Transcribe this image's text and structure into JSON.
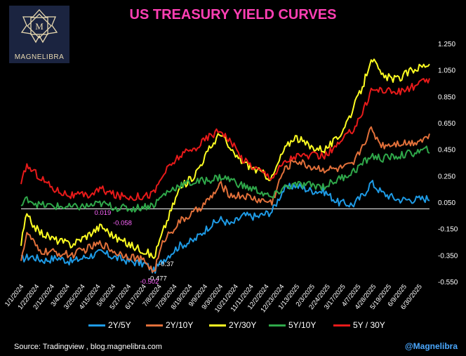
{
  "header": {
    "title": "US TREASURY YIELD CURVES"
  },
  "logo": {
    "text": "MAGNELIBRA",
    "gold": "#e8d9b0",
    "bg": "#1b2440"
  },
  "footer": {
    "source": "Source:  Tradingview , blog.magnelibra.com",
    "handle": "@Magnelibra"
  },
  "colors": {
    "background": "#000000",
    "title": "#ff3fb4",
    "zero_line": "#ffffff",
    "handle": "#4aa8ff",
    "annotation": "#ff66ff"
  },
  "chart_data": {
    "type": "line",
    "title": "US TREASURY YIELD CURVES",
    "ylim": [
      -0.55,
      1.25
    ],
    "yticks": [
      "1.250",
      "1.050",
      "0.850",
      "0.650",
      "0.450",
      "0.250",
      "0.050",
      "-0.150",
      "-0.350",
      "-0.550"
    ],
    "yaxis_side": "right",
    "grid": false,
    "legend": "bottom",
    "x_dates": [
      "2024-01-01",
      "2025-07-14"
    ],
    "xticks": [
      "1/1/2024",
      "1/22/2024",
      "2/12/2024",
      "3/4/2024",
      "3/25/2024",
      "4/15/2024",
      "5/6/2024",
      "5/27/2024",
      "6/17/2024",
      "7/8/2024",
      "7/29/2024",
      "8/19/2024",
      "9/9/2024",
      "9/30/2024",
      "10/21/2024",
      "11/11/2024",
      "12/2/2024",
      "12/23/2024",
      "1/13/2025",
      "2/3/2025",
      "2/24/2025",
      "3/17/2025",
      "4/7/2025",
      "4/28/2025",
      "5/19/2025",
      "6/9/2025",
      "6/30/2025"
    ],
    "series": [
      {
        "name": "2Y/5Y",
        "color": "#1e9be6",
        "points": [
          [
            "2024-01-01",
            -0.38
          ],
          [
            "2024-01-15",
            -0.36
          ],
          [
            "2024-02-01",
            -0.39
          ],
          [
            "2024-02-20",
            -0.37
          ],
          [
            "2024-03-10",
            -0.4
          ],
          [
            "2024-04-01",
            -0.36
          ],
          [
            "2024-04-20",
            -0.33
          ],
          [
            "2024-05-10",
            -0.37
          ],
          [
            "2024-06-01",
            -0.4
          ],
          [
            "2024-06-20",
            -0.42
          ],
          [
            "2024-07-01",
            -0.47
          ],
          [
            "2024-07-15",
            -0.38
          ],
          [
            "2024-08-05",
            -0.28
          ],
          [
            "2024-08-25",
            -0.24
          ],
          [
            "2024-09-15",
            -0.13
          ],
          [
            "2024-10-01",
            -0.08
          ],
          [
            "2024-10-15",
            -0.12
          ],
          [
            "2024-11-01",
            -0.05
          ],
          [
            "2024-11-20",
            -0.06
          ],
          [
            "2024-12-10",
            -0.02
          ],
          [
            "2024-12-25",
            0.14
          ],
          [
            "2025-01-10",
            0.18
          ],
          [
            "2025-01-31",
            0.14
          ],
          [
            "2025-02-20",
            0.13
          ],
          [
            "2025-03-10",
            0.05
          ],
          [
            "2025-03-31",
            0.03
          ],
          [
            "2025-04-15",
            0.11
          ],
          [
            "2025-04-25",
            0.2
          ],
          [
            "2025-05-10",
            0.12
          ],
          [
            "2025-06-01",
            0.07
          ],
          [
            "2025-06-20",
            0.07
          ],
          [
            "2025-07-14",
            0.08
          ]
        ]
      },
      {
        "name": "2Y/10Y",
        "color": "#e2703a",
        "points": [
          [
            "2024-01-01",
            -0.37
          ],
          [
            "2024-01-10",
            -0.18
          ],
          [
            "2024-01-25",
            -0.32
          ],
          [
            "2024-02-15",
            -0.33
          ],
          [
            "2024-03-10",
            -0.35
          ],
          [
            "2024-04-01",
            -0.3
          ],
          [
            "2024-04-20",
            -0.26
          ],
          [
            "2024-05-10",
            -0.33
          ],
          [
            "2024-06-01",
            -0.36
          ],
          [
            "2024-06-20",
            -0.4
          ],
          [
            "2024-07-01",
            -0.48
          ],
          [
            "2024-07-15",
            -0.23
          ],
          [
            "2024-08-05",
            -0.1
          ],
          [
            "2024-08-25",
            -0.03
          ],
          [
            "2024-09-15",
            0.07
          ],
          [
            "2024-10-01",
            0.18
          ],
          [
            "2024-10-15",
            0.1
          ],
          [
            "2024-11-01",
            0.1
          ],
          [
            "2024-11-20",
            0.07
          ],
          [
            "2024-12-10",
            0.05
          ],
          [
            "2024-12-25",
            0.28
          ],
          [
            "2025-01-10",
            0.37
          ],
          [
            "2025-01-31",
            0.32
          ],
          [
            "2025-02-20",
            0.3
          ],
          [
            "2025-03-10",
            0.3
          ],
          [
            "2025-03-31",
            0.33
          ],
          [
            "2025-04-15",
            0.5
          ],
          [
            "2025-04-25",
            0.6
          ],
          [
            "2025-05-10",
            0.48
          ],
          [
            "2025-06-01",
            0.5
          ],
          [
            "2025-06-20",
            0.5
          ],
          [
            "2025-07-14",
            0.55
          ]
        ]
      },
      {
        "name": "2Y/30Y",
        "color": "#ffff22",
        "points": [
          [
            "2024-01-01",
            -0.27
          ],
          [
            "2024-01-08",
            -0.05
          ],
          [
            "2024-01-25",
            -0.17
          ],
          [
            "2024-02-15",
            -0.23
          ],
          [
            "2024-03-10",
            -0.27
          ],
          [
            "2024-04-01",
            -0.2
          ],
          [
            "2024-04-20",
            -0.13
          ],
          [
            "2024-05-10",
            -0.22
          ],
          [
            "2024-06-01",
            -0.28
          ],
          [
            "2024-06-20",
            -0.32
          ],
          [
            "2024-07-01",
            -0.37
          ],
          [
            "2024-07-15",
            -0.15
          ],
          [
            "2024-08-05",
            0.15
          ],
          [
            "2024-08-25",
            0.25
          ],
          [
            "2024-09-15",
            0.45
          ],
          [
            "2024-10-01",
            0.58
          ],
          [
            "2024-10-15",
            0.43
          ],
          [
            "2024-11-01",
            0.35
          ],
          [
            "2024-11-20",
            0.29
          ],
          [
            "2024-12-10",
            0.23
          ],
          [
            "2024-12-25",
            0.43
          ],
          [
            "2025-01-10",
            0.55
          ],
          [
            "2025-01-31",
            0.47
          ],
          [
            "2025-02-20",
            0.45
          ],
          [
            "2025-03-10",
            0.53
          ],
          [
            "2025-03-31",
            0.75
          ],
          [
            "2025-04-15",
            0.95
          ],
          [
            "2025-04-25",
            1.15
          ],
          [
            "2025-05-10",
            1.0
          ],
          [
            "2025-06-01",
            0.98
          ],
          [
            "2025-06-20",
            1.05
          ],
          [
            "2025-07-14",
            1.1
          ]
        ]
      },
      {
        "name": "5Y/10Y",
        "color": "#2fa84a",
        "points": [
          [
            "2024-01-01",
            0.02
          ],
          [
            "2024-01-10",
            0.08
          ],
          [
            "2024-01-25",
            0.03
          ],
          [
            "2024-02-15",
            0.02
          ],
          [
            "2024-03-10",
            0.01
          ],
          [
            "2024-04-01",
            0.02
          ],
          [
            "2024-04-20",
            0.04
          ],
          [
            "2024-05-10",
            0.01
          ],
          [
            "2024-06-01",
            0.0
          ],
          [
            "2024-06-20",
            0.02
          ],
          [
            "2024-07-01",
            0.03
          ],
          [
            "2024-07-15",
            0.11
          ],
          [
            "2024-08-05",
            0.18
          ],
          [
            "2024-08-25",
            0.2
          ],
          [
            "2024-09-15",
            0.22
          ],
          [
            "2024-10-01",
            0.24
          ],
          [
            "2024-10-15",
            0.22
          ],
          [
            "2024-11-01",
            0.17
          ],
          [
            "2024-11-20",
            0.14
          ],
          [
            "2024-12-10",
            0.08
          ],
          [
            "2024-12-25",
            0.16
          ],
          [
            "2025-01-10",
            0.18
          ],
          [
            "2025-01-31",
            0.18
          ],
          [
            "2025-02-20",
            0.17
          ],
          [
            "2025-03-10",
            0.22
          ],
          [
            "2025-03-31",
            0.28
          ],
          [
            "2025-04-15",
            0.35
          ],
          [
            "2025-04-25",
            0.4
          ],
          [
            "2025-05-10",
            0.38
          ],
          [
            "2025-06-01",
            0.4
          ],
          [
            "2025-06-20",
            0.42
          ],
          [
            "2025-07-14",
            0.45
          ]
        ]
      },
      {
        "name": "5Y / 30Y",
        "color": "#e81a1a",
        "points": [
          [
            "2024-01-01",
            0.17
          ],
          [
            "2024-01-08",
            0.33
          ],
          [
            "2024-01-25",
            0.25
          ],
          [
            "2024-02-15",
            0.15
          ],
          [
            "2024-03-10",
            0.1
          ],
          [
            "2024-04-01",
            0.1
          ],
          [
            "2024-04-20",
            0.15
          ],
          [
            "2024-05-10",
            0.1
          ],
          [
            "2024-06-01",
            0.09
          ],
          [
            "2024-06-20",
            0.1
          ],
          [
            "2024-07-01",
            0.12
          ],
          [
            "2024-07-15",
            0.27
          ],
          [
            "2024-08-05",
            0.4
          ],
          [
            "2024-08-25",
            0.45
          ],
          [
            "2024-09-15",
            0.55
          ],
          [
            "2024-10-01",
            0.6
          ],
          [
            "2024-10-15",
            0.5
          ],
          [
            "2024-11-01",
            0.37
          ],
          [
            "2024-11-20",
            0.3
          ],
          [
            "2024-12-10",
            0.24
          ],
          [
            "2024-12-25",
            0.34
          ],
          [
            "2025-01-10",
            0.4
          ],
          [
            "2025-01-31",
            0.4
          ],
          [
            "2025-02-20",
            0.4
          ],
          [
            "2025-03-10",
            0.48
          ],
          [
            "2025-03-31",
            0.6
          ],
          [
            "2025-04-15",
            0.75
          ],
          [
            "2025-04-25",
            0.9
          ],
          [
            "2025-05-10",
            0.9
          ],
          [
            "2025-06-01",
            0.88
          ],
          [
            "2025-06-20",
            0.92
          ],
          [
            "2025-07-14",
            0.98
          ]
        ]
      }
    ],
    "annotations": [
      {
        "text": "0.019",
        "date": "2024-04-22",
        "value": 0.019,
        "color": "#ff66ff"
      },
      {
        "text": "-0.058",
        "date": "2024-05-19",
        "value": -0.058,
        "color": "#ff66ff"
      },
      {
        "text": "-0.37",
        "date": "2024-07-18",
        "value": -0.37,
        "color": "#ffffff"
      },
      {
        "text": "-0.477",
        "date": "2024-07-06",
        "value": -0.477,
        "color": "#ffffff"
      },
      {
        "text": "-0.502",
        "date": "2024-06-25",
        "value": -0.502,
        "color": "#ff66ff"
      }
    ]
  }
}
